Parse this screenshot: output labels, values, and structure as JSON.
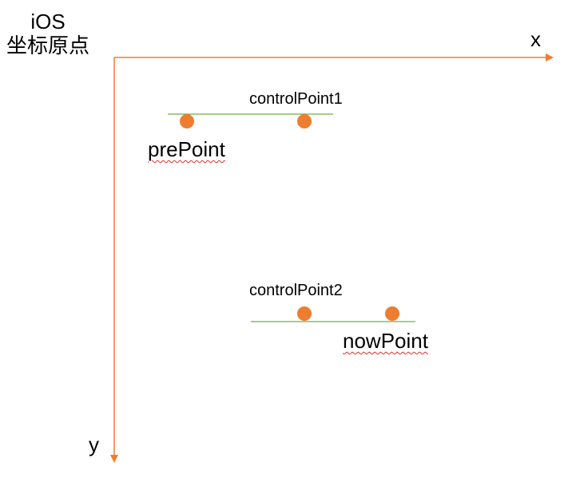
{
  "origin": {
    "line1": "iOS",
    "line2": "坐标原点"
  },
  "axes": {
    "x_label": "x",
    "y_label": "y",
    "color": "#ED7D31"
  },
  "points": {
    "control_point_1": "controlPoint1",
    "control_point_2": "controlPoint2",
    "previous_point": "prePoint",
    "current_point": "nowPoint",
    "point_color": "#ED7D31",
    "tangent_color": "#70AD47"
  }
}
